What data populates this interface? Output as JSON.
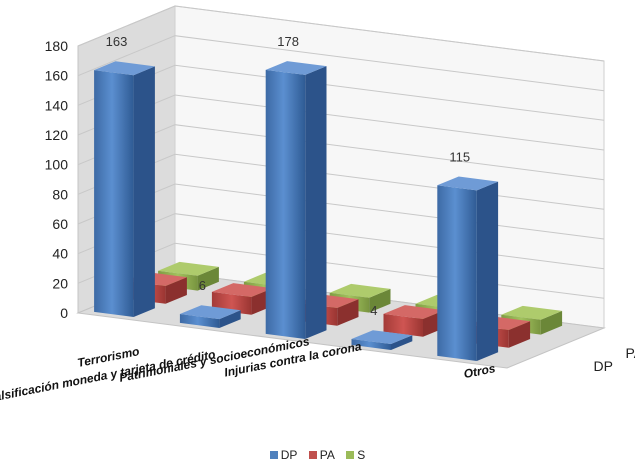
{
  "chart_data": {
    "type": "bar",
    "chart_style": "3d-clustered-depth",
    "categories": [
      "Terrorismo",
      "Falsificación moneda y tarjeta de crédito",
      "Patrimoniales y socioeconómicos",
      "Injurias contra la corona",
      "Otros"
    ],
    "series": [
      {
        "name": "DP",
        "values": [
          163,
          6,
          178,
          4,
          115
        ],
        "color": "#4F81BD"
      },
      {
        "name": "PA",
        "values": [
          12,
          12,
          12,
          12,
          12
        ],
        "color": "#C0504D"
      },
      {
        "name": "S",
        "values": [
          10,
          10,
          10,
          10,
          10
        ],
        "color": "#9BBB59"
      }
    ],
    "data_labels": [
      "163",
      "6",
      "178",
      "4",
      "115"
    ],
    "y_ticks": [
      "0",
      "20",
      "40",
      "60",
      "80",
      "100",
      "120",
      "140",
      "160",
      "180"
    ],
    "ylim": [
      0,
      180
    ],
    "grid": true,
    "legend_position": "bottom"
  }
}
